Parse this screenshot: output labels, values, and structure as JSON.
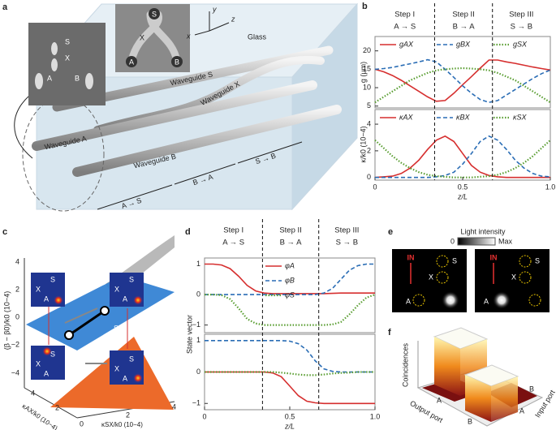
{
  "panel_labels": [
    "a",
    "b",
    "c",
    "d",
    "e",
    "f"
  ],
  "steps": [
    {
      "label": "Step I",
      "transition": "A → S"
    },
    {
      "label": "Step II",
      "transition": "B → A"
    },
    {
      "label": "Step III",
      "transition": "S → B"
    }
  ],
  "step_bounds": [
    0.34,
    0.67
  ],
  "panels": {
    "a": {
      "ports": [
        "S",
        "X",
        "A",
        "B"
      ],
      "axes": [
        "y",
        "z",
        "x"
      ],
      "medium": "Glass",
      "waveguides": [
        "Waveguide S",
        "Waveguide X",
        "Waveguide A",
        "Waveguide B"
      ]
    },
    "c": {
      "ylabel": "(β − β0)/k0 (10−4)",
      "yticks": [
        "4",
        "2",
        "0",
        "−2",
        "−4"
      ],
      "xlabel_left": "κAX/k0 (10−4)",
      "xlabel_right": "κSX/k0 (10−4)",
      "xticks_left": [
        "4",
        "2"
      ],
      "xticks_right": [
        "0",
        "2",
        "4"
      ],
      "plane_label": "Step I",
      "ports": [
        "S",
        "X",
        "A"
      ]
    },
    "e": {
      "title": "Light intensity",
      "scale_min": "0",
      "scale_max": "Max",
      "input": "IN",
      "ports": [
        "S",
        "X",
        "A",
        "B"
      ]
    },
    "f": {
      "zlabel": "Coincidences",
      "xlabel": "Output port",
      "ylabel": "Input port",
      "ports": [
        "A",
        "B"
      ]
    }
  },
  "chart_data": [
    {
      "type": "line",
      "ylabel": "g (μm)",
      "x": [
        0,
        0.05,
        0.1,
        0.15,
        0.2,
        0.25,
        0.3,
        0.35,
        0.4,
        0.45,
        0.5,
        0.55,
        0.6,
        0.65,
        0.7,
        0.75,
        0.8,
        0.85,
        0.9,
        0.95,
        1
      ],
      "xlim": [
        0,
        1
      ],
      "ylim": [
        4.5,
        23.9
      ],
      "yticks": [
        5,
        10,
        15,
        20
      ],
      "legend": "top",
      "series": [
        {
          "name": "gAX",
          "color": "#d62f2f",
          "dash": "solid",
          "values": [
            15,
            14.3,
            13.3,
            12,
            10.5,
            9,
            7.5,
            6.3,
            6.5,
            8.5,
            10.8,
            13,
            15.3,
            17.5,
            17.5,
            17,
            16.6,
            16.1,
            15.6,
            15.2,
            14.8
          ]
        },
        {
          "name": "gBX",
          "color": "#2a6db5",
          "dash": "dashed",
          "values": [
            15,
            15.2,
            15.5,
            16,
            16.5,
            17,
            17.6,
            17,
            15,
            12.8,
            10.5,
            8.5,
            6.8,
            6,
            6.5,
            8,
            9.5,
            11,
            12.5,
            13.8,
            14.8
          ]
        },
        {
          "name": "gSX",
          "color": "#5a9e32",
          "dash": "dotted",
          "values": [
            6,
            7.5,
            9,
            10.5,
            12,
            13,
            14,
            14.7,
            15,
            15.2,
            15.3,
            15.2,
            15,
            14.7,
            14,
            13,
            12,
            10.5,
            9,
            7.5,
            6
          ]
        }
      ]
    },
    {
      "type": "line",
      "ylabel": "κ/k0 (10−4)",
      "xlabel": "z/L",
      "x": [
        0,
        0.05,
        0.1,
        0.15,
        0.2,
        0.25,
        0.3,
        0.35,
        0.4,
        0.45,
        0.5,
        0.55,
        0.6,
        0.65,
        0.7,
        0.75,
        0.8,
        0.85,
        0.9,
        0.95,
        1
      ],
      "xlim": [
        0,
        1
      ],
      "xticks": [
        0,
        0.5,
        {
          "value": 1,
          "label": "1.0"
        }
      ],
      "ylim": [
        -0.2,
        5.1
      ],
      "yticks": [
        0,
        2,
        4
      ],
      "legend": "top",
      "series": [
        {
          "name": "κAX",
          "color": "#d62f2f",
          "dash": "solid",
          "values": [
            0,
            0.05,
            0.1,
            0.3,
            0.7,
            1.3,
            2.1,
            2.8,
            3.1,
            2.7,
            1.8,
            0.9,
            0.4,
            0.15,
            0.05,
            0,
            0,
            0,
            0,
            0,
            0
          ]
        },
        {
          "name": "κBX",
          "color": "#2a6db5",
          "dash": "dashed",
          "values": [
            0,
            0,
            0,
            0,
            0,
            0,
            0,
            0.05,
            0.15,
            0.4,
            1,
            1.8,
            2.7,
            3.1,
            2.8,
            2.1,
            1.3,
            0.7,
            0.3,
            0.1,
            0.05
          ]
        },
        {
          "name": "κSX",
          "color": "#5a9e32",
          "dash": "dotted",
          "values": [
            2.8,
            2.2,
            1.6,
            1.1,
            0.7,
            0.4,
            0.2,
            0.1,
            0.05,
            0,
            0,
            0,
            0.05,
            0.1,
            0.2,
            0.4,
            0.7,
            1.1,
            1.6,
            2.2,
            2.8
          ]
        }
      ]
    },
    {
      "type": "line",
      "ylabel": "State vector",
      "x": [
        0,
        0.05,
        0.1,
        0.15,
        0.2,
        0.25,
        0.3,
        0.35,
        0.4,
        0.45,
        0.5,
        0.55,
        0.6,
        0.65,
        0.7,
        0.75,
        0.8,
        0.85,
        0.9,
        0.95,
        1
      ],
      "xlim": [
        0,
        1
      ],
      "ylim": [
        -1.25,
        1.2
      ],
      "yticks": [
        {
          "value": -1,
          "label": "−1"
        },
        0,
        1
      ],
      "legend": "upper center",
      "series": [
        {
          "name": "φA",
          "color": "#d62f2f",
          "dash": "solid",
          "values": [
            1,
            1,
            0.97,
            0.85,
            0.6,
            0.3,
            0.12,
            0.05,
            0.03,
            0.03,
            0.03,
            0.03,
            0.03,
            0.03,
            0.03,
            0.04,
            0.05,
            0.05,
            0.05,
            0.05,
            0.05
          ]
        },
        {
          "name": "φB",
          "color": "#2a6db5",
          "dash": "dashed",
          "values": [
            0,
            0,
            0,
            0,
            0,
            0,
            0,
            0,
            0,
            0,
            0,
            0,
            0,
            0,
            0.05,
            0.2,
            0.5,
            0.8,
            0.95,
            1,
            1
          ]
        },
        {
          "name": "φS",
          "color": "#5a9e32",
          "dash": "dotted",
          "values": [
            0,
            0,
            -0.02,
            -0.15,
            -0.45,
            -0.8,
            -0.95,
            -1,
            -1,
            -1,
            -1,
            -1,
            -1,
            -1,
            -1,
            -0.98,
            -0.9,
            -0.65,
            -0.35,
            -0.1,
            0
          ]
        }
      ]
    },
    {
      "type": "line",
      "xlabel": "z/L",
      "x": [
        0,
        0.05,
        0.1,
        0.15,
        0.2,
        0.25,
        0.3,
        0.35,
        0.4,
        0.45,
        0.5,
        0.55,
        0.6,
        0.65,
        0.7,
        0.75,
        0.8,
        0.85,
        0.9,
        0.95,
        1
      ],
      "xlim": [
        0,
        1
      ],
      "xticks": [
        0,
        0.5,
        {
          "value": 1,
          "label": "1.0"
        }
      ],
      "ylim": [
        -1.2,
        1.2
      ],
      "yticks": [
        {
          "value": -1,
          "label": "−1"
        },
        0,
        1
      ],
      "series": [
        {
          "color": "#d62f2f",
          "dash": "solid",
          "values": [
            0,
            0,
            0,
            0,
            0,
            0,
            0,
            0,
            -0.03,
            -0.15,
            -0.45,
            -0.75,
            -0.93,
            -0.98,
            -1,
            -1,
            -1,
            -1,
            -1,
            -1,
            -1
          ]
        },
        {
          "color": "#2a6db5",
          "dash": "dashed",
          "values": [
            1,
            1,
            1,
            1,
            1,
            1,
            1,
            1,
            1,
            1,
            0.98,
            0.9,
            0.7,
            0.35,
            0.1,
            0.02,
            0,
            0,
            0,
            0,
            0
          ]
        },
        {
          "color": "#5a9e32",
          "dash": "dotted",
          "values": [
            0,
            0,
            0,
            0,
            0,
            0,
            0,
            0,
            0,
            -0.02,
            -0.05,
            -0.08,
            -0.1,
            -0.1,
            -0.08,
            -0.05,
            -0.03,
            -0.02,
            0,
            0,
            0
          ]
        }
      ]
    }
  ]
}
